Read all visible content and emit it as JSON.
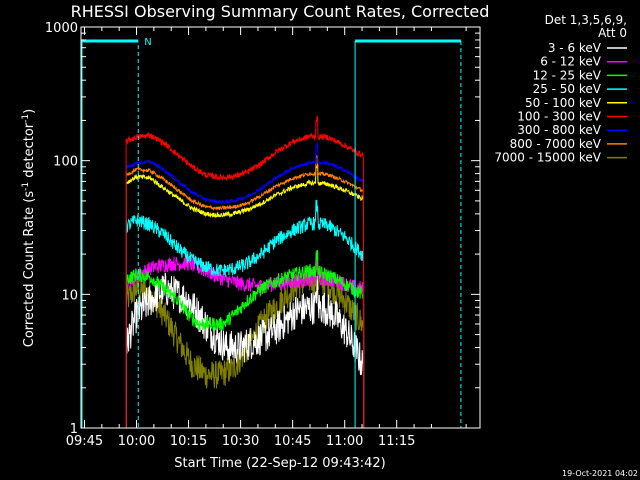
{
  "chart_data": {
    "type": "line",
    "title": "RHESSI Observing Summary Count Rates, Corrected",
    "xlabel": "Start Time (22-Sep-12 09:43:42)",
    "ylabel_main": "Corrected Count Rate (s",
    "ylabel_sup1": "-1",
    "ylabel_mid": " detector",
    "ylabel_sup2": "-1",
    "ylabel_end": ")",
    "y_scale": "log",
    "ylim": [
      1,
      1000
    ],
    "xlim_minutes": [
      -16,
      99
    ],
    "x_ticks": [
      {
        "label": "09:45",
        "min": -15
      },
      {
        "label": "10:00",
        "min": 0
      },
      {
        "label": "10:15",
        "min": 15
      },
      {
        "label": "10:30",
        "min": 30
      },
      {
        "label": "10:45",
        "min": 45
      },
      {
        "label": "11:00",
        "min": 60
      },
      {
        "label": "11:15",
        "min": 75
      }
    ],
    "y_ticks": [
      {
        "label": "1",
        "value": 1
      },
      {
        "label": "10",
        "value": 10
      },
      {
        "label": "100",
        "value": 100
      },
      {
        "label": "1000",
        "value": 1000
      }
    ],
    "legend_header": [
      "Det 1,3,5,6,9,",
      "Att 0"
    ],
    "legend_position": "top-right",
    "night_marker": "N",
    "data_start_min": -3,
    "data_end_min": 65.5,
    "series": [
      {
        "name": "3 - 6 keV",
        "color": "#ffffff",
        "noise": 0.3,
        "points": [
          [
            -3,
            4
          ],
          [
            -2,
            5
          ],
          [
            0,
            7
          ],
          [
            4,
            9
          ],
          [
            8,
            11
          ],
          [
            12,
            10
          ],
          [
            15,
            9
          ],
          [
            18,
            7
          ],
          [
            22,
            5
          ],
          [
            26,
            4
          ],
          [
            30,
            4
          ],
          [
            34,
            4.5
          ],
          [
            38,
            5
          ],
          [
            42,
            6
          ],
          [
            46,
            7.5
          ],
          [
            50,
            8
          ],
          [
            54,
            8
          ],
          [
            57,
            7
          ],
          [
            60,
            5.5
          ],
          [
            63,
            4
          ],
          [
            65,
            3
          ]
        ]
      },
      {
        "name": "6 - 12 keV",
        "color": "#ff00ff",
        "noise": 0.13,
        "points": [
          [
            -3,
            12
          ],
          [
            0,
            14
          ],
          [
            5,
            16
          ],
          [
            10,
            17
          ],
          [
            15,
            17
          ],
          [
            20,
            15
          ],
          [
            25,
            13
          ],
          [
            30,
            12
          ],
          [
            35,
            11.5
          ],
          [
            40,
            12
          ],
          [
            45,
            12.5
          ],
          [
            50,
            13
          ],
          [
            54,
            13
          ],
          [
            58,
            12.5
          ],
          [
            62,
            11.5
          ],
          [
            65,
            11
          ]
        ]
      },
      {
        "name": "12 - 25 keV",
        "color": "#00ff00",
        "noise": 0.12,
        "points": [
          [
            -3,
            13
          ],
          [
            0,
            14
          ],
          [
            4,
            13.5
          ],
          [
            8,
            11
          ],
          [
            12,
            9
          ],
          [
            15,
            7
          ],
          [
            18,
            6
          ],
          [
            22,
            6
          ],
          [
            25,
            6
          ],
          [
            28,
            7
          ],
          [
            32,
            9
          ],
          [
            36,
            11
          ],
          [
            40,
            12.5
          ],
          [
            45,
            14
          ],
          [
            50,
            15
          ],
          [
            55,
            14
          ],
          [
            60,
            12
          ],
          [
            65,
            10
          ]
        ]
      },
      {
        "name": "25 - 50 keV",
        "color": "#00ffff",
        "noise": 0.12,
        "points": [
          [
            -3,
            32
          ],
          [
            0,
            36
          ],
          [
            4,
            33
          ],
          [
            8,
            28
          ],
          [
            12,
            22
          ],
          [
            16,
            18
          ],
          [
            20,
            16
          ],
          [
            24,
            15
          ],
          [
            28,
            15.5
          ],
          [
            32,
            17
          ],
          [
            36,
            20
          ],
          [
            40,
            25
          ],
          [
            45,
            30
          ],
          [
            50,
            34
          ],
          [
            55,
            33
          ],
          [
            60,
            27
          ],
          [
            65,
            20
          ]
        ]
      },
      {
        "name": "50 - 100 keV",
        "color": "#ffff00",
        "noise": 0.04,
        "points": [
          [
            -3,
            68
          ],
          [
            0,
            76
          ],
          [
            4,
            74
          ],
          [
            8,
            62
          ],
          [
            12,
            52
          ],
          [
            16,
            44
          ],
          [
            20,
            40
          ],
          [
            24,
            39
          ],
          [
            28,
            40
          ],
          [
            32,
            43
          ],
          [
            36,
            48
          ],
          [
            40,
            55
          ],
          [
            45,
            63
          ],
          [
            50,
            68
          ],
          [
            55,
            67
          ],
          [
            60,
            60
          ],
          [
            65,
            52
          ]
        ]
      },
      {
        "name": "100 - 300 keV",
        "color": "#ff0000",
        "noise": 0.05,
        "points": [
          [
            -3,
            140
          ],
          [
            0,
            150
          ],
          [
            4,
            155
          ],
          [
            8,
            135
          ],
          [
            12,
            110
          ],
          [
            16,
            90
          ],
          [
            20,
            78
          ],
          [
            24,
            75
          ],
          [
            28,
            76
          ],
          [
            32,
            82
          ],
          [
            36,
            95
          ],
          [
            40,
            115
          ],
          [
            45,
            138
          ],
          [
            50,
            152
          ],
          [
            55,
            150
          ],
          [
            60,
            130
          ],
          [
            65,
            110
          ]
        ]
      },
      {
        "name": "300 - 800 keV",
        "color": "#0000ff",
        "noise": 0.03,
        "points": [
          [
            -3,
            88
          ],
          [
            0,
            96
          ],
          [
            4,
            98
          ],
          [
            8,
            85
          ],
          [
            12,
            70
          ],
          [
            16,
            58
          ],
          [
            20,
            51
          ],
          [
            24,
            49
          ],
          [
            28,
            50
          ],
          [
            32,
            54
          ],
          [
            36,
            62
          ],
          [
            40,
            74
          ],
          [
            45,
            88
          ],
          [
            50,
            97
          ],
          [
            55,
            96
          ],
          [
            60,
            85
          ],
          [
            65,
            70
          ]
        ]
      },
      {
        "name": "800 - 7000 keV",
        "color": "#ff8000",
        "noise": 0.03,
        "points": [
          [
            -3,
            78
          ],
          [
            0,
            86
          ],
          [
            4,
            84
          ],
          [
            8,
            72
          ],
          [
            12,
            60
          ],
          [
            16,
            50
          ],
          [
            20,
            45
          ],
          [
            24,
            44
          ],
          [
            28,
            45
          ],
          [
            32,
            48
          ],
          [
            36,
            55
          ],
          [
            40,
            64
          ],
          [
            45,
            74
          ],
          [
            50,
            80
          ],
          [
            55,
            79
          ],
          [
            60,
            70
          ],
          [
            65,
            60
          ]
        ]
      },
      {
        "name": "7000 - 15000 keV",
        "color": "#808000",
        "noise": 0.25,
        "points": [
          [
            -3,
            9
          ],
          [
            0,
            11
          ],
          [
            4,
            10
          ],
          [
            8,
            7
          ],
          [
            12,
            4.5
          ],
          [
            16,
            3
          ],
          [
            20,
            2.5
          ],
          [
            24,
            2.5
          ],
          [
            28,
            2.8
          ],
          [
            32,
            4
          ],
          [
            36,
            6
          ],
          [
            40,
            8
          ],
          [
            45,
            11
          ],
          [
            50,
            13
          ],
          [
            55,
            12
          ],
          [
            60,
            9
          ],
          [
            65,
            6
          ]
        ]
      }
    ]
  },
  "footer_timestamp": "19-Oct-2021 04:02",
  "colors": {
    "background": "#000000",
    "axes": "#ffffff",
    "marker": "#00ffff"
  }
}
